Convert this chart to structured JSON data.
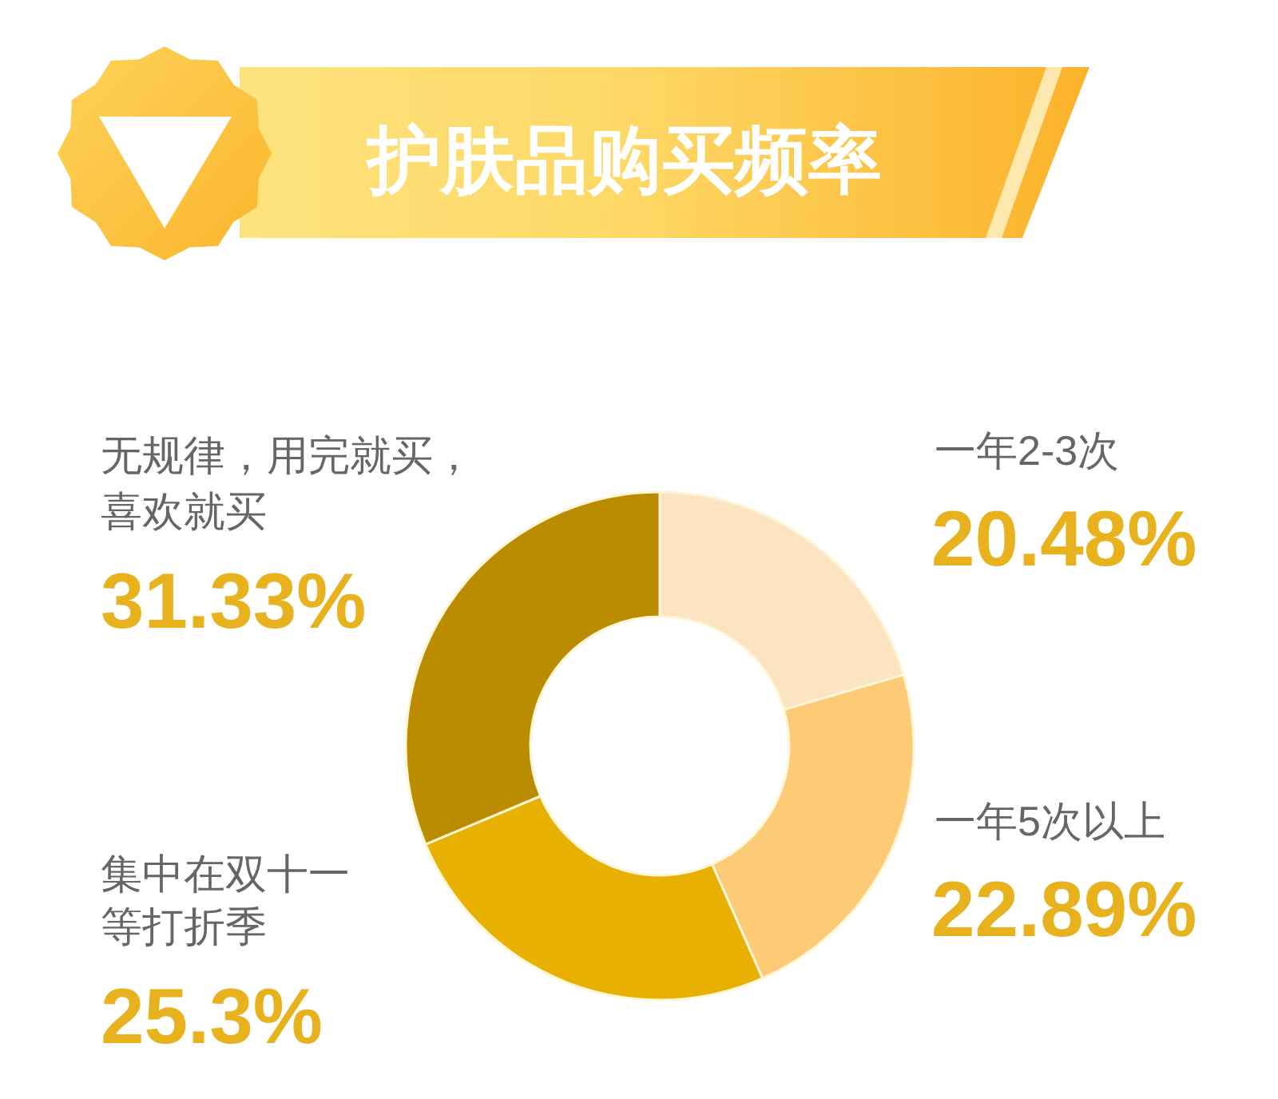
{
  "chart_data": {
    "type": "donut",
    "title": "护肤品购买频率",
    "categories": [
      "一年2-3次",
      "一年5次以上",
      "集中在双十一等打折季",
      "无规律，用完就买，喜欢就买"
    ],
    "values": [
      20.48,
      22.89,
      25.3,
      31.33
    ],
    "value_labels": [
      "20.48%",
      "22.89%",
      "25.3%",
      "31.33%"
    ],
    "colors": [
      "#fce4c3",
      "#fdca76",
      "#e8b000",
      "#bb8b00"
    ]
  }
}
